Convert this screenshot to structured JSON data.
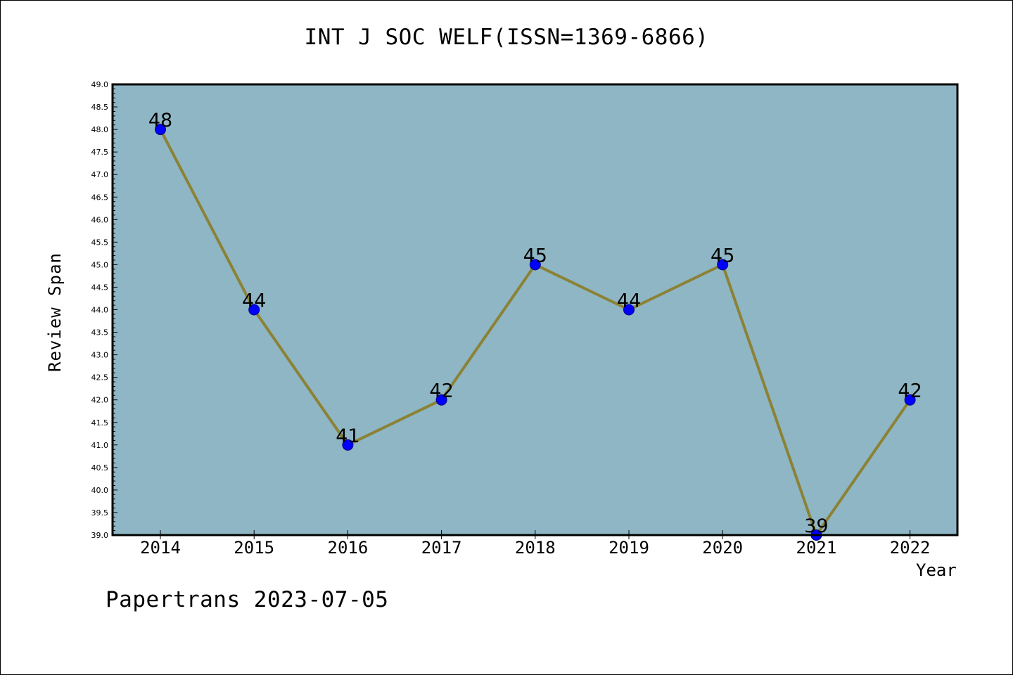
{
  "figure": {
    "title": "INT J SOC WELF(ISSN=1369-6866)",
    "footer": "Papertrans 2023-07-05"
  },
  "chart_data": {
    "type": "line",
    "title": "INT J SOC WELF(ISSN=1369-6866)",
    "xlabel": "Year",
    "ylabel": "Review Span",
    "categories": [
      "2014",
      "2015",
      "2016",
      "2017",
      "2018",
      "2019",
      "2020",
      "2021",
      "2022"
    ],
    "series": [
      {
        "values": [
          48,
          44,
          41,
          42,
          45,
          44,
          45,
          39,
          42
        ]
      }
    ],
    "data_labels": [
      "48",
      "44",
      "41",
      "42",
      "45",
      "44",
      "45",
      "39",
      "42"
    ],
    "ylim": [
      39.0,
      49.0
    ],
    "y_major_step": 0.5,
    "y_tick_labels": [
      "39.0",
      "39.5",
      "40.0",
      "40.5",
      "41.0",
      "41.5",
      "42.0",
      "42.5",
      "43.0",
      "43.5",
      "44.0",
      "44.5",
      "45.0",
      "45.5",
      "46.0",
      "46.5",
      "47.0",
      "47.5",
      "48.0",
      "48.5",
      "49.0"
    ],
    "grid": false,
    "legend": "none",
    "colors": {
      "plot_background": "#8fb6c4",
      "line": "#8b8236",
      "marker_fill": "#0000ff",
      "marker_edge": "#000080"
    }
  }
}
